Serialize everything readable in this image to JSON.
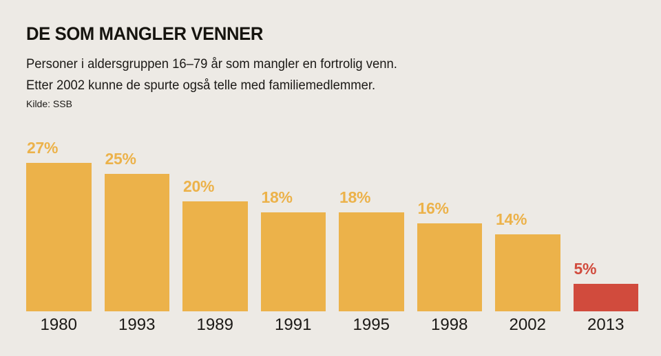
{
  "page": {
    "background_color": "#edeae5"
  },
  "header": {
    "title": "DE SOM MANGLER VENNER",
    "subtitle_line1": "Personer i aldersgruppen 16–79 år som mangler en fortrolig venn.",
    "subtitle_line2": "Etter 2002 kunne de spurte også telle med familiemedlemmer.",
    "source": "Kilde: SSB"
  },
  "chart_data": {
    "type": "bar",
    "title": "DE SOM MANGLER VENNER",
    "categories": [
      "1980",
      "1993",
      "1989",
      "1991",
      "1995",
      "1998",
      "2002",
      "2013"
    ],
    "values": [
      27,
      25,
      20,
      18,
      18,
      16,
      14,
      5
    ],
    "value_labels": [
      "27%",
      "25%",
      "20%",
      "18%",
      "18%",
      "16%",
      "14%",
      "5%"
    ],
    "bar_colors": [
      "#ecb24a",
      "#ecb24a",
      "#ecb24a",
      "#ecb24a",
      "#ecb24a",
      "#ecb24a",
      "#ecb24a",
      "#d14b3d"
    ],
    "label_colors": [
      "#ecb24a",
      "#ecb24a",
      "#ecb24a",
      "#ecb24a",
      "#ecb24a",
      "#ecb24a",
      "#ecb24a",
      "#d14b3d"
    ],
    "accent_orange": "#ecb24a",
    "accent_red": "#d14b3d",
    "xlabel": "",
    "ylabel": "",
    "ylim": [
      0,
      30
    ],
    "grid": false,
    "legend": "none",
    "value_label_position": "above-bar-left-aligned",
    "x_tick_position": "below-bar-centered"
  }
}
